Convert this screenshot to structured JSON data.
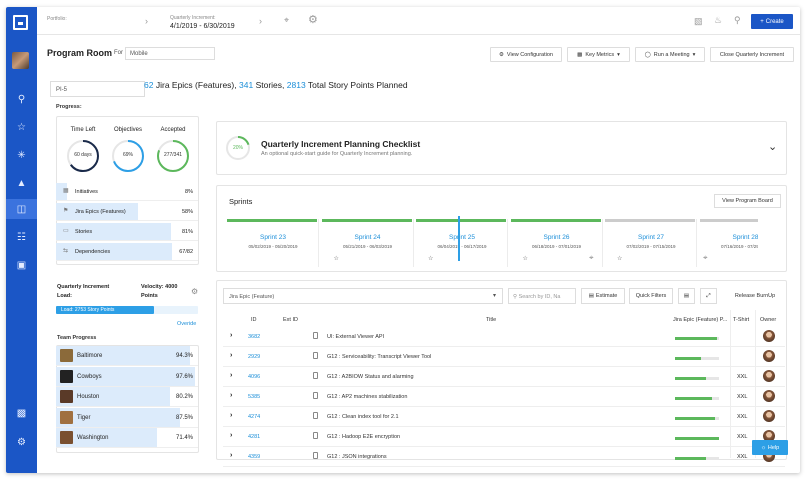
{
  "topbar": {
    "portfolio_label": "Portfolio:",
    "qi_label": "Quarterly Increment:",
    "qi_dates": "4/1/2019 - 6/30/2019",
    "create_label": "Create"
  },
  "header": {
    "title": "Program Room",
    "for_label": "For",
    "team_value": "Mobile",
    "buttons": {
      "view_configuration": "View Configuration",
      "key_metrics": "Key Metrics",
      "run_meeting": "Run a Meeting",
      "close_qi": "Close Quarterly Increment"
    }
  },
  "pi_select": "PI-5",
  "summary": {
    "epics_count": "62",
    "epics_text": "Jira Epics (Features),",
    "stories_count": "341",
    "stories_text": "Stories,",
    "points_count": "2813",
    "points_text": "Total Story Points Planned"
  },
  "progress": {
    "label": "Progress:",
    "rings": [
      {
        "label": "Time Left",
        "text": "60 days",
        "fraction": 0.65,
        "color": "#1a2a4a"
      },
      {
        "label": "Objectives",
        "text": "69%",
        "fraction": 0.69,
        "color": "#2d9fe6"
      },
      {
        "label": "Accepted",
        "text": "277/341",
        "fraction": 0.81,
        "color": "#5cb85c"
      }
    ],
    "rows": [
      {
        "name": "Initiatives",
        "value": "8%",
        "fraction": 0.08,
        "icon": "grid-icon"
      },
      {
        "name": "Jira Epics (Features)",
        "value": "58%",
        "fraction": 0.58,
        "icon": "flag-icon"
      },
      {
        "name": "Stories",
        "value": "81%",
        "fraction": 0.81,
        "icon": "doc-icon"
      },
      {
        "name": "Dependencies",
        "value": "67/82",
        "fraction": 0.82,
        "icon": "link-icon"
      }
    ]
  },
  "capacity": {
    "qi_load_label": "Quarterly Increment Load:",
    "velocity_label": "Velocity: 4000 Points",
    "load_text": "Load: 2753 Story Points",
    "load_fraction": 0.69,
    "overide": "Overide"
  },
  "teams": {
    "label": "Team Progress",
    "rows": [
      {
        "name": "Baltimore",
        "value": "94.3%",
        "fraction": 0.943,
        "avatar": "#8b6a3a"
      },
      {
        "name": "Cowboys",
        "value": "97.6%",
        "fraction": 0.976,
        "avatar": "#222222"
      },
      {
        "name": "Houston",
        "value": "80.2%",
        "fraction": 0.802,
        "avatar": "#5a3a28"
      },
      {
        "name": "Tiger",
        "value": "87.5%",
        "fraction": 0.875,
        "avatar": "#a07040"
      },
      {
        "name": "Washington",
        "value": "71.4%",
        "fraction": 0.714,
        "avatar": "#7a5030"
      }
    ]
  },
  "checklist": {
    "percent": "20%",
    "fraction": 0.2,
    "title": "Quarterly Increment Planning Checklist",
    "subtitle": "An optional quick-start guide for Quarterly Increment planning."
  },
  "sprints": {
    "title": "Sprints",
    "view_board": "View Program Board",
    "items": [
      {
        "name": "Sprint 23",
        "dates": "05/02/2019 - 05/20/2019",
        "done": true
      },
      {
        "name": "Sprint 24",
        "dates": "05/21/2019 - 06/03/2019",
        "done": true
      },
      {
        "name": "Sprint 25",
        "dates": "06/04/2019 - 06/17/2019",
        "done": true
      },
      {
        "name": "Sprint 26",
        "dates": "06/18/2019 - 07/01/2019",
        "done": true
      },
      {
        "name": "Sprint 27",
        "dates": "07/02/2019 - 07/15/2019",
        "done": false
      },
      {
        "name": "Sprint 28",
        "dates": "07/16/2019 - 07/29/2019",
        "done": false
      }
    ]
  },
  "grid": {
    "type_value": "Jira Epic (Feature)",
    "search_placeholder": "Search by ID, Na",
    "estimate": "Estimate",
    "quick_filters": "Quick Filters",
    "release_burnup": "Release BurnUp",
    "headers": {
      "id": "ID",
      "ext_id": "Ext ID",
      "title": "Title",
      "progress": "Jira Epic (Feature) P...",
      "tshirt": "T-Shirt",
      "owner": "Owner"
    },
    "rows": [
      {
        "id": "3682",
        "title": "UI: External Viewer API",
        "progress": 0.95,
        "size": ""
      },
      {
        "id": "2929",
        "title": "G12 : Serviceability: Transcript Viewer Tool",
        "progress": 0.6,
        "size": ""
      },
      {
        "id": "4096",
        "title": "G12 : A2BIOW Status and alarming",
        "progress": 0.7,
        "size": "XXL"
      },
      {
        "id": "5385",
        "title": "G12 : AP2 machines stabilization",
        "progress": 0.85,
        "size": "XXL"
      },
      {
        "id": "4274",
        "title": "G12 : Clean index tool for 2.1",
        "progress": 0.9,
        "size": "XXL"
      },
      {
        "id": "4281",
        "title": "G12 : Hadoop E2E encryption",
        "progress": 1.0,
        "size": "XXL"
      },
      {
        "id": "4359",
        "title": "G12 : JSON integrations",
        "progress": 0.7,
        "size": "XXL"
      }
    ]
  },
  "help_label": "Help"
}
